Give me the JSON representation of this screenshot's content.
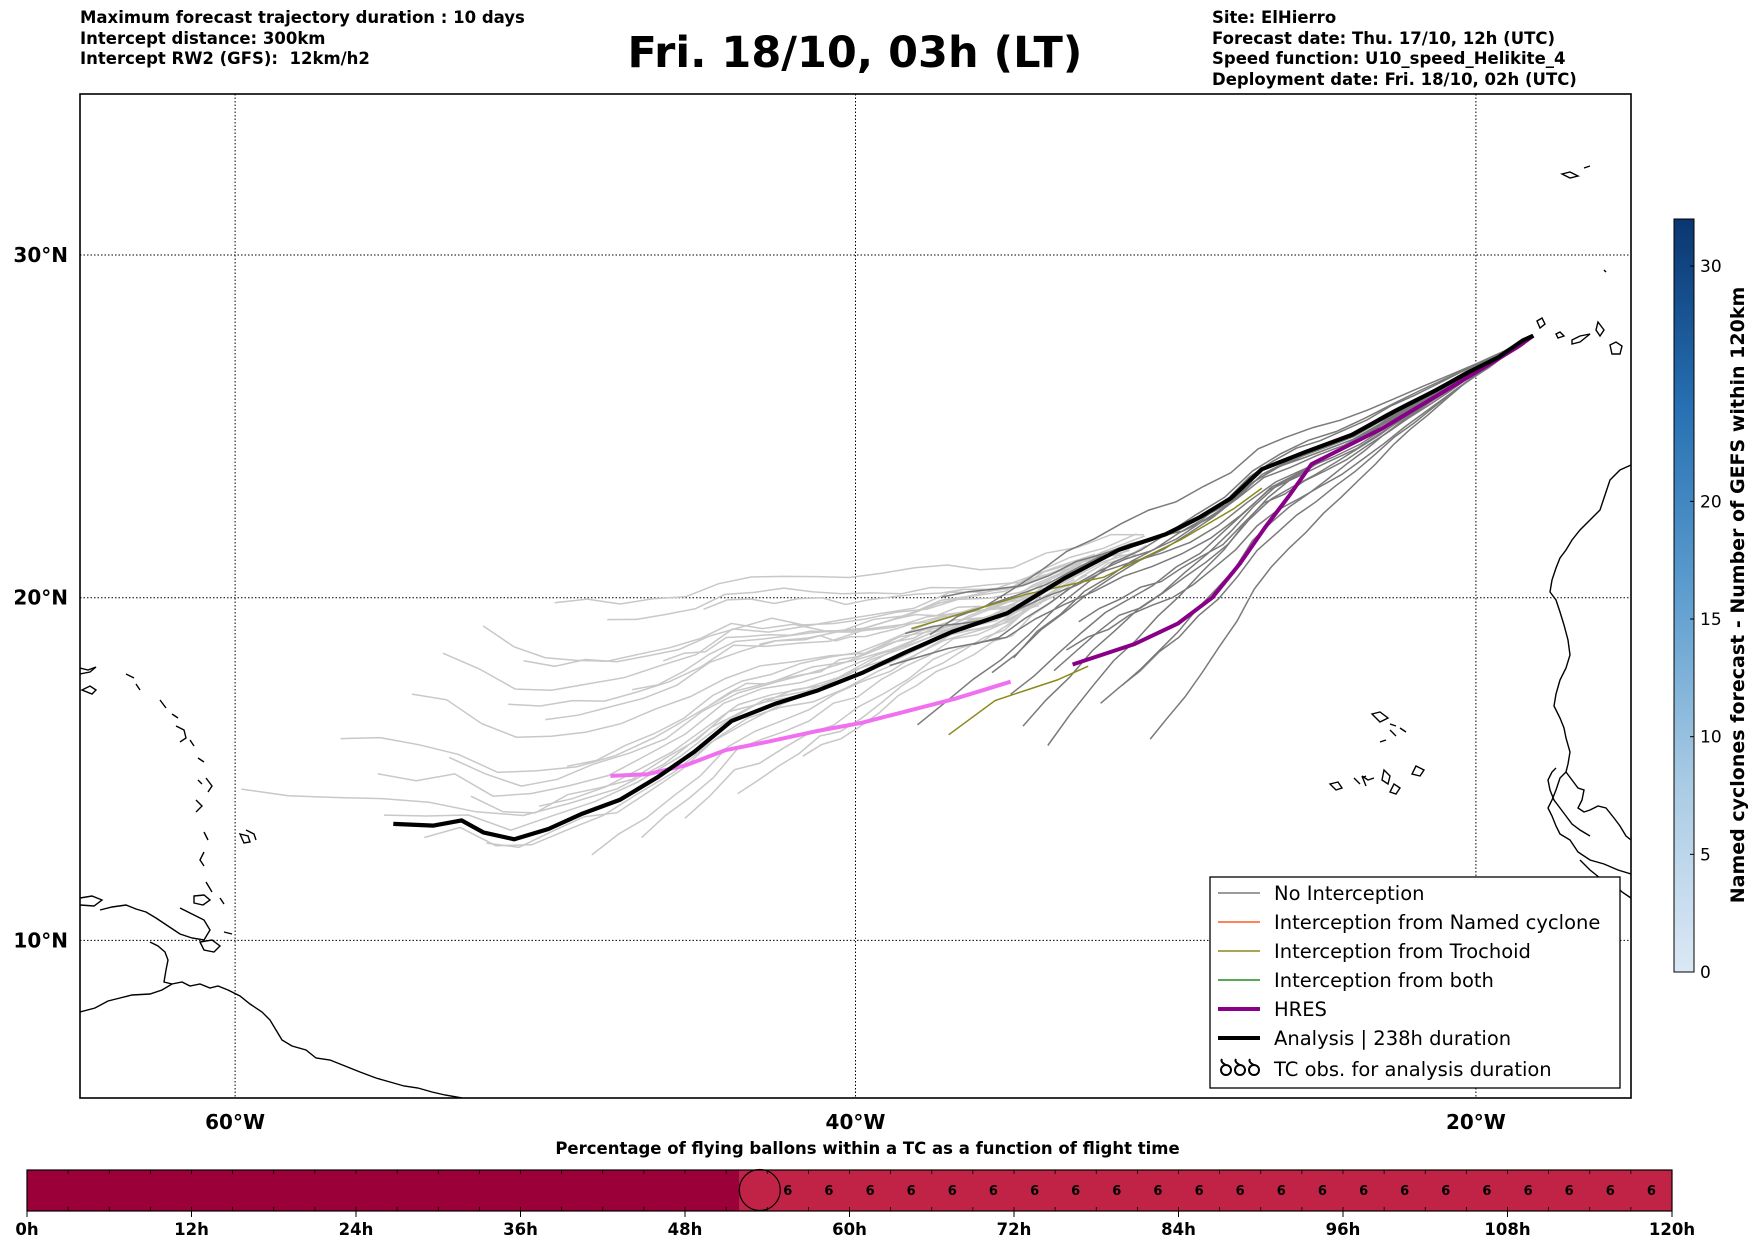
{
  "header": {
    "left_lines": [
      "Maximum forecast trajectory duration : 10 days",
      "Intercept distance: 300km",
      "Intercept RW2 (GFS):  12km/h2"
    ],
    "title": "Fri. 18/10, 03h (LT)",
    "right_lines": [
      "Site: ElHierro",
      "Forecast date: Thu. 17/10, 12h (UTC)",
      "Speed function: U10_speed_Helikite_4",
      "Deployment date: Fri. 18/10, 02h (UTC)"
    ]
  },
  "map": {
    "extent": {
      "lon_min": -65,
      "lon_max": -15,
      "lat_min": 5.4,
      "lat_max": 34.7
    },
    "lat_gridlines": [
      10,
      20,
      30
    ],
    "lon_gridlines": [
      -60,
      -40,
      -20
    ],
    "lat_labels": [
      "10°N",
      "20°N",
      "30°N"
    ],
    "lon_labels": [
      "60°W",
      "40°W",
      "20°W"
    ],
    "colors": {
      "no_interception": "#7a7a7a",
      "no_interception_light": "#c8c8c8",
      "named_cyclone": "#ff5a1e",
      "trochoid": "#8a8a1a",
      "both": "#228b22",
      "hres": "#880088",
      "hres_light": "#f070f0",
      "analysis": "#000000"
    },
    "analysis_track": [
      [
        -54.9,
        13.4
      ],
      [
        -53.6,
        13.35
      ],
      [
        -52.7,
        13.5
      ],
      [
        -52.0,
        13.15
      ],
      [
        -51.0,
        12.95
      ],
      [
        -49.9,
        13.25
      ],
      [
        -48.8,
        13.7
      ],
      [
        -47.6,
        14.1
      ],
      [
        -46.4,
        14.75
      ],
      [
        -45.2,
        15.5
      ],
      [
        -44.0,
        16.4
      ],
      [
        -42.6,
        16.9
      ],
      [
        -41.2,
        17.3
      ],
      [
        -39.8,
        17.8
      ],
      [
        -38.4,
        18.4
      ],
      [
        -36.9,
        19.0
      ],
      [
        -35.1,
        19.55
      ],
      [
        -33.3,
        20.55
      ],
      [
        -31.5,
        21.4
      ],
      [
        -30.0,
        21.85
      ],
      [
        -28.9,
        22.35
      ],
      [
        -27.9,
        22.9
      ],
      [
        -26.9,
        23.75
      ],
      [
        -25.5,
        24.25
      ],
      [
        -24.0,
        24.75
      ],
      [
        -22.6,
        25.45
      ],
      [
        -21.3,
        26.05
      ],
      [
        -20.2,
        26.6
      ],
      [
        -19.3,
        27.0
      ],
      [
        -18.5,
        27.5
      ],
      [
        -18.15,
        27.65
      ]
    ],
    "hres_track": [
      [
        -47.9,
        14.8
      ],
      [
        -46.7,
        14.85
      ],
      [
        -45.5,
        15.1
      ],
      [
        -44.2,
        15.55
      ],
      [
        -42.8,
        15.8
      ],
      [
        -41.3,
        16.1
      ],
      [
        -39.8,
        16.35
      ],
      [
        -38.3,
        16.7
      ],
      [
        -36.8,
        17.05
      ],
      [
        -35.0,
        17.55
      ],
      [
        -33.0,
        18.05
      ],
      [
        -31.0,
        18.65
      ],
      [
        -29.6,
        19.25
      ],
      [
        -28.5,
        20.0
      ],
      [
        -27.6,
        21.0
      ],
      [
        -26.8,
        22.05
      ],
      [
        -26.0,
        23.0
      ],
      [
        -25.3,
        23.9
      ],
      [
        -24.2,
        24.4
      ],
      [
        -23.0,
        24.95
      ],
      [
        -21.8,
        25.6
      ],
      [
        -20.6,
        26.25
      ],
      [
        -19.5,
        26.85
      ],
      [
        -18.6,
        27.35
      ],
      [
        -18.15,
        27.65
      ]
    ],
    "hres_split_lon": -34.3,
    "ensemble_starts": [
      [
        -38.4,
        19.0
      ],
      [
        -37.2,
        20.0
      ],
      [
        -36.3,
        19.65
      ],
      [
        -35.0,
        17.1
      ],
      [
        -34.6,
        16.2
      ],
      [
        -33.8,
        15.65
      ],
      [
        -38.0,
        16.3
      ],
      [
        -38.9,
        18.0
      ],
      [
        -32.8,
        19.3
      ],
      [
        -33.6,
        17.9
      ]
    ],
    "light_track_starts": [
      [
        -59.8,
        14.4
      ],
      [
        -56.6,
        16.0
      ],
      [
        -55.4,
        14.9
      ],
      [
        -55.2,
        13.7
      ],
      [
        -53.3,
        18.5
      ],
      [
        -52.0,
        19.1
      ],
      [
        -51.2,
        17.0
      ],
      [
        -50.7,
        18.1
      ],
      [
        -49.3,
        15.1
      ],
      [
        -48.5,
        12.6
      ],
      [
        -52.4,
        14.2
      ],
      [
        -50.2,
        13.9
      ],
      [
        -46.2,
        18.1
      ],
      [
        -44.7,
        16.8
      ],
      [
        -47.2,
        17.3
      ],
      [
        -48.0,
        19.4
      ],
      [
        -53.1,
        15.3
      ],
      [
        -45.5,
        13.5
      ],
      [
        -43.1,
        18.7
      ],
      [
        -50.0,
        16.4
      ],
      [
        -54.3,
        17.2
      ],
      [
        -41.7,
        15.3
      ],
      [
        -46.9,
        13.1
      ],
      [
        -43.8,
        14.4
      ],
      [
        -49.7,
        19.9
      ],
      [
        -51.9,
        12.9
      ],
      [
        -44.9,
        19.6
      ],
      [
        -53.9,
        13.1
      ]
    ],
    "trochoid_tracks": [
      [
        [
          -38.2,
          19.1
        ],
        [
          -34.5,
          20.1
        ],
        [
          -32.0,
          20.6
        ],
        [
          -29.5,
          21.7
        ],
        [
          -27.8,
          22.6
        ],
        [
          -26.9,
          23.2
        ]
      ],
      [
        [
          -37.0,
          16.0
        ],
        [
          -35.5,
          17.0
        ],
        [
          -33.5,
          17.6
        ],
        [
          -32.5,
          18.0
        ]
      ]
    ]
  },
  "legend": {
    "items": [
      {
        "label": "No Interception",
        "style": "thin-gray"
      },
      {
        "label": "Interception from Named cyclone",
        "style": "thin-orange"
      },
      {
        "label": "Interception from Trochoid",
        "style": "thin-olive"
      },
      {
        "label": "Interception from both",
        "style": "thin-green"
      },
      {
        "label": "HRES",
        "style": "thick-purple"
      },
      {
        "label": "Analysis | 238h duration",
        "style": "thick-black"
      },
      {
        "label": "TC obs. for analysis duration",
        "style": "cyclone-symbols"
      }
    ]
  },
  "colorbar": {
    "label": "Named cyclones forecast - Number of GEFS within 120km",
    "ticks": [
      0,
      5,
      10,
      15,
      20,
      30
    ],
    "vmin": 0,
    "vmax": 32,
    "color_low": "#dae8f5",
    "color_high": "#0a3670"
  },
  "timeline": {
    "title": "Percentage of flying ballons within a TC as a function of flight time",
    "tick_labels": [
      "0h",
      "12h",
      "24h",
      "36h",
      "48h",
      "60h",
      "72h",
      "84h",
      "96h",
      "108h",
      "120h"
    ],
    "max_hours": 120,
    "current_hour": 52,
    "color_past": "#9c0039",
    "color_future": "#c12346",
    "cell_values": [
      "6",
      "6",
      "6",
      "6",
      "6",
      "6",
      "6",
      "6",
      "6",
      "6",
      "6",
      "6",
      "6",
      "6",
      "6",
      "6",
      "6",
      "6",
      "6",
      "6",
      "6",
      "6"
    ]
  }
}
